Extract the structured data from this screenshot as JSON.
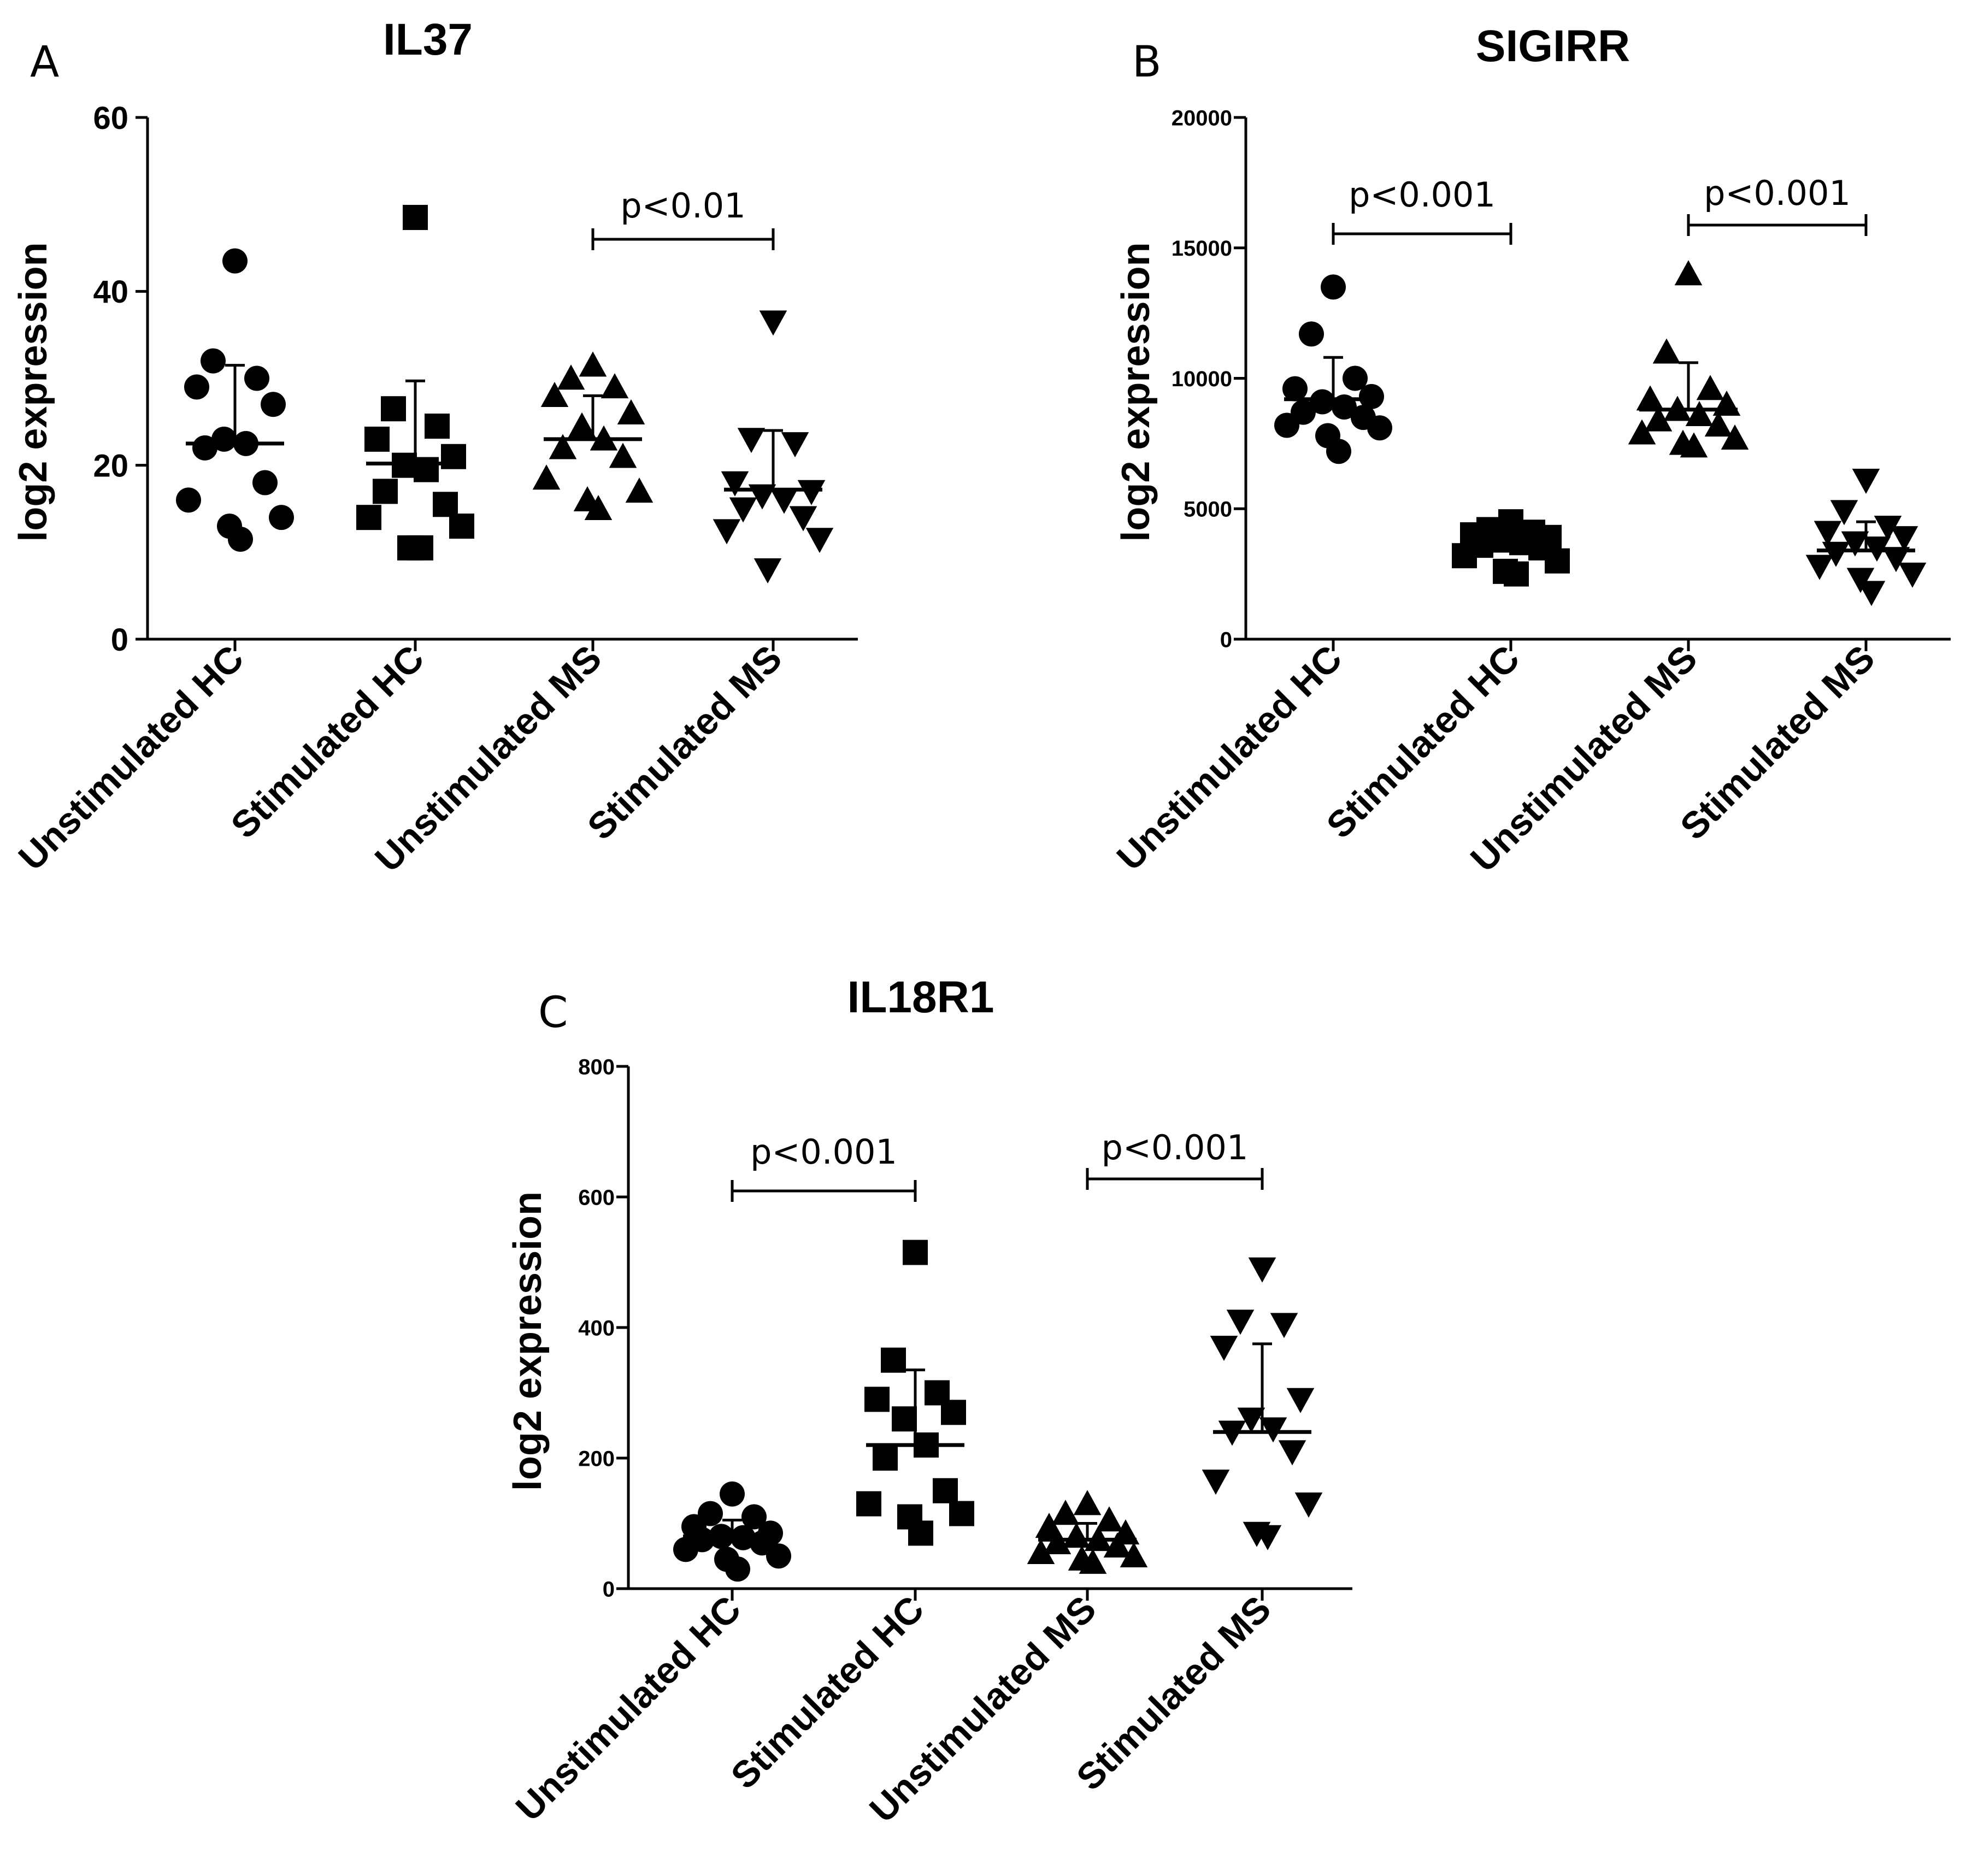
{
  "chart_data": [
    {
      "type": "scatter",
      "panel_letter": "A",
      "title": "IL37",
      "ylabel": "log2 expression",
      "xlabel": "",
      "ylim": [
        0,
        60
      ],
      "yticks": [
        "0",
        "20",
        "40",
        "60"
      ],
      "ytick_style": "large",
      "categories": [
        "Unstimulated HC",
        "Stimulated HC",
        "Unstimulated MS",
        "Stimulated MS"
      ],
      "markers": [
        "circle",
        "square",
        "triangle-up",
        "triangle-down"
      ],
      "series": [
        {
          "name": "Unstimulated HC",
          "values": [
            43.5,
            32,
            30,
            29,
            27,
            23,
            22.5,
            22,
            18,
            16,
            14,
            13,
            11.5
          ],
          "mean": 22.5,
          "sd_upper": 31.5
        },
        {
          "name": "Stimulated HC",
          "values": [
            48.5,
            26.5,
            24.5,
            23,
            21,
            20,
            19.5,
            17,
            15.5,
            14,
            13,
            10.5,
            10.5
          ],
          "mean": 20.2,
          "sd_upper": 29.7
        },
        {
          "name": "Unstimulated MS",
          "values": [
            31.5,
            30,
            29,
            28,
            26,
            24.5,
            23,
            22,
            21,
            18.5,
            17,
            16,
            15
          ],
          "mean": 23,
          "sd_upper": 28
        },
        {
          "name": "Stimulated MS",
          "values": [
            36.5,
            23,
            22.5,
            18,
            17,
            16.5,
            16,
            15,
            14,
            12.5,
            11.5,
            8
          ],
          "mean": 17.2,
          "sd_upper": 24
        }
      ],
      "significance": [
        {
          "from": "Unstimulated MS",
          "to": "Stimulated MS",
          "label": "p<0.01"
        }
      ]
    },
    {
      "type": "scatter",
      "panel_letter": "B",
      "title": "SIGIRR",
      "ylabel": "log2 expression",
      "xlabel": "",
      "ylim": [
        0,
        20000
      ],
      "yticks": [
        "0",
        "5000",
        "10000",
        "15000",
        "20000"
      ],
      "ytick_style": "small",
      "categories": [
        "Unstimulated HC",
        "Stimulated HC",
        "Unstimulated MS",
        "Stimulated MS"
      ],
      "markers": [
        "circle",
        "square",
        "triangle-up",
        "triangle-down"
      ],
      "series": [
        {
          "name": "Unstimulated HC",
          "values": [
            13500,
            11700,
            10000,
            9600,
            9300,
            9100,
            8900,
            8700,
            8500,
            8200,
            8100,
            7800,
            7200
          ],
          "mean": 9200,
          "sd_upper": 10800
        },
        {
          "name": "Stimulated HC",
          "values": [
            4500,
            4200,
            4100,
            4000,
            3900,
            3800,
            3700,
            3600,
            3500,
            3200,
            3000,
            2600,
            2500
          ],
          "mean": 3700,
          "sd_upper": 4200
        },
        {
          "name": "Unstimulated MS",
          "values": [
            14000,
            11000,
            9600,
            9200,
            9000,
            8800,
            8600,
            8400,
            8200,
            7900,
            7700,
            7500,
            7400
          ],
          "mean": 8800,
          "sd_upper": 10600
        },
        {
          "name": "Stimulated MS",
          "values": [
            6100,
            4900,
            4300,
            4100,
            3900,
            3700,
            3500,
            3300,
            3100,
            2800,
            2500,
            2300,
            1800
          ],
          "mean": 3400,
          "sd_upper": 4500
        }
      ],
      "significance": [
        {
          "from": "Unstimulated HC",
          "to": "Stimulated HC",
          "label": "p<0.001"
        },
        {
          "from": "Unstimulated MS",
          "to": "Stimulated MS",
          "label": "p<0.001"
        }
      ]
    },
    {
      "type": "scatter",
      "panel_letter": "C",
      "title": "IL18R1",
      "ylabel": "log2 expression",
      "xlabel": "",
      "ylim": [
        0,
        800
      ],
      "yticks": [
        "0",
        "200",
        "400",
        "600",
        "800"
      ],
      "ytick_style": "small",
      "categories": [
        "Unstimulated HC",
        "Stimulated HC",
        "Unstimulated MS",
        "Stimulated MS"
      ],
      "markers": [
        "circle",
        "square",
        "triangle-up",
        "triangle-down"
      ],
      "series": [
        {
          "name": "Unstimulated HC",
          "values": [
            145,
            115,
            110,
            95,
            85,
            80,
            78,
            75,
            70,
            60,
            50,
            45,
            30
          ],
          "mean": 80,
          "sd_upper": 105
        },
        {
          "name": "Stimulated HC",
          "values": [
            515,
            350,
            300,
            290,
            270,
            260,
            220,
            200,
            150,
            130,
            115,
            110,
            85
          ],
          "mean": 220,
          "sd_upper": 335
        },
        {
          "name": "Unstimulated MS",
          "values": [
            130,
            115,
            105,
            95,
            85,
            80,
            75,
            70,
            65,
            55,
            50,
            45,
            40
          ],
          "mean": 75,
          "sd_upper": 100
        },
        {
          "name": "Stimulated MS",
          "values": [
            490,
            410,
            405,
            370,
            290,
            260,
            245,
            240,
            210,
            165,
            130,
            85,
            80
          ],
          "mean": 240,
          "sd_upper": 375
        }
      ],
      "significance": [
        {
          "from": "Unstimulated HC",
          "to": "Stimulated HC",
          "label": "p<0.001"
        },
        {
          "from": "Unstimulated MS",
          "to": "Stimulated MS",
          "label": "p<0.001"
        }
      ]
    }
  ]
}
